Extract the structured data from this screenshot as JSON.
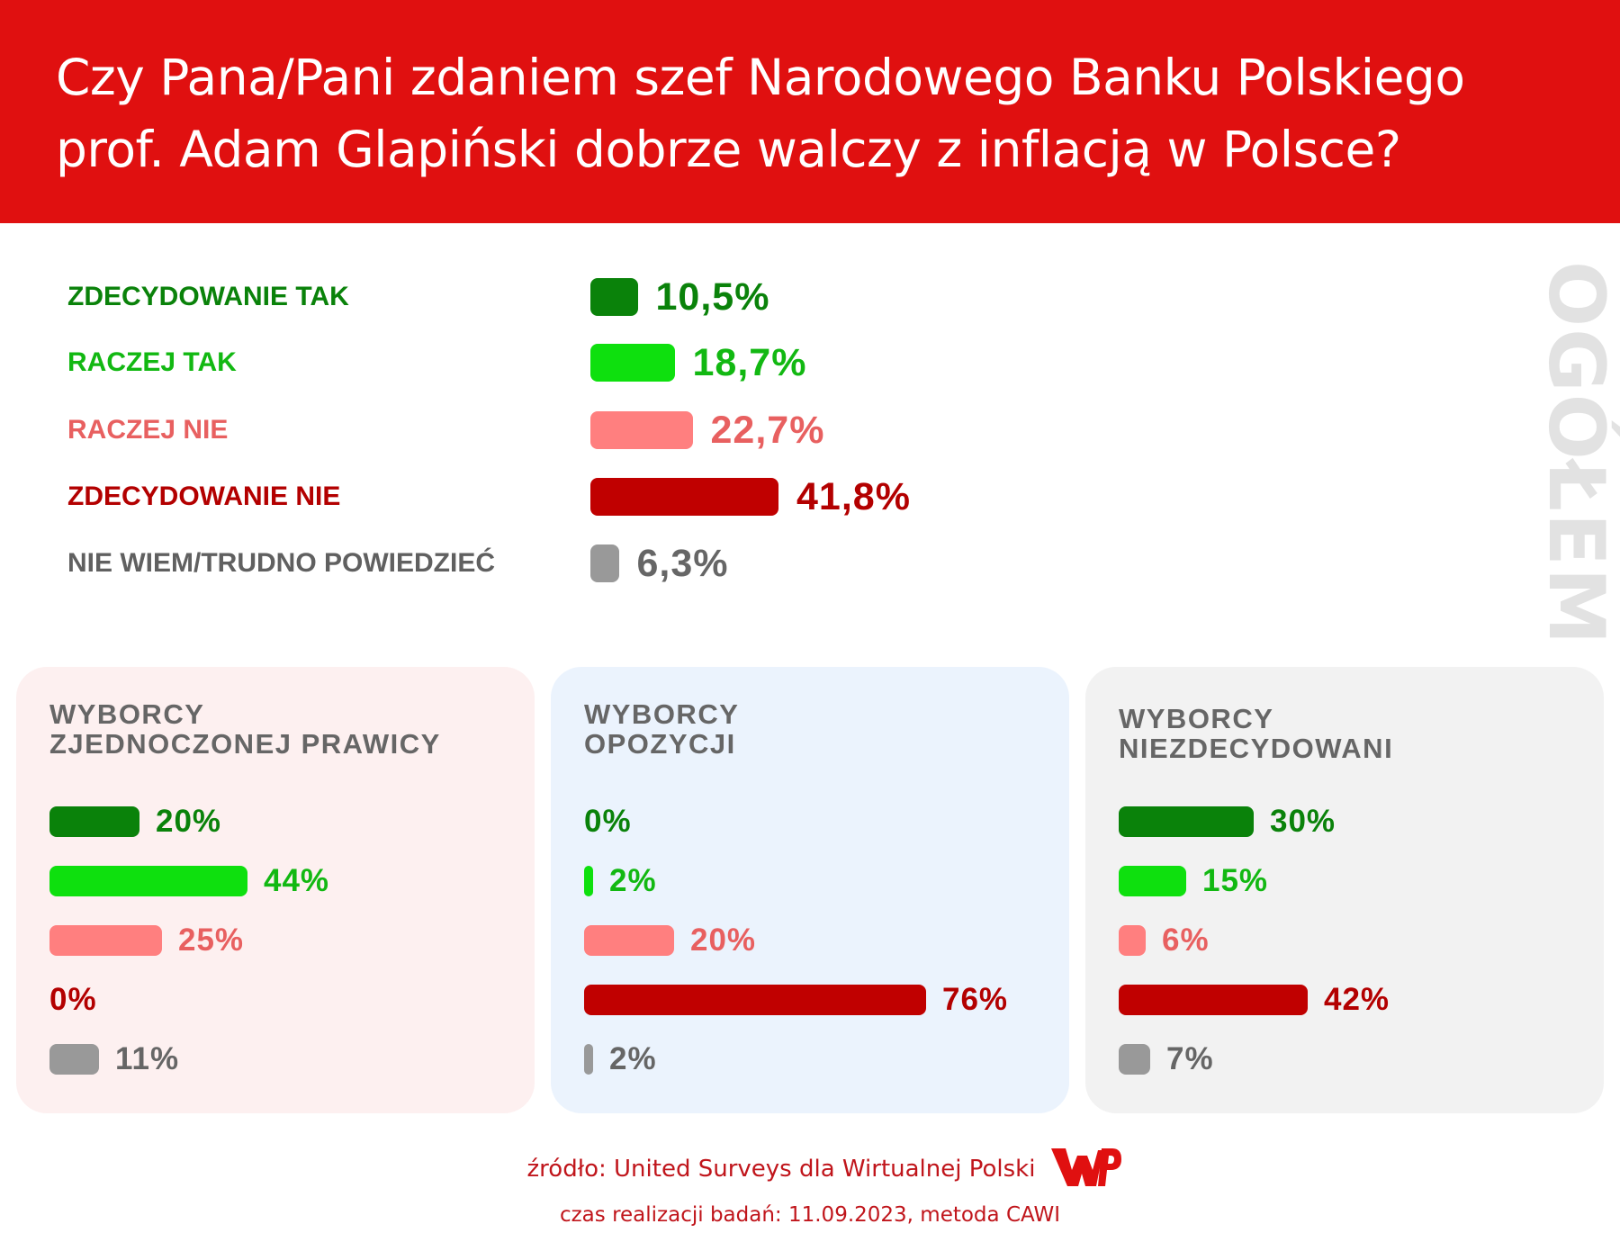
{
  "title_line1": "Czy Pana/Pani zdaniem szef Narodowego Banku Polskiego",
  "title_line2": "prof. Adam Glapiński dobrze walczy z inflacją w Polsce?",
  "side_label": "OGÓŁEM",
  "colors": {
    "header": "#e01010",
    "zdecydowanie_tak": "#0a820a",
    "raczej_tak": "#0ee00e",
    "raczej_nie": "#ff7f7f",
    "zdecydowanie_nie": "#c00000",
    "nie_wiem": "#999999",
    "panel_prawica": "#fdf0f0",
    "panel_opozycja": "#ebf3fd",
    "panel_niezdecydowani": "#f2f2f2"
  },
  "chart_data": [
    {
      "type": "bar",
      "orientation": "horizontal",
      "title": "Czy Pana/Pani zdaniem szef Narodowego Banku Polskiego prof. Adam Glapiński dobrze walczy z inflacją w Polsce?",
      "group": "OGÓŁEM",
      "categories": [
        "ZDECYDOWANIE TAK",
        "RACZEJ TAK",
        "RACZEJ NIE",
        "ZDECYDOWANIE NIE",
        "NIE WIEM/TRUDNO POWIEDZIEĆ"
      ],
      "values": [
        10.5,
        18.7,
        22.7,
        41.8,
        6.3
      ],
      "labels": [
        "10,5%",
        "18,7%",
        "22,7%",
        "41,8%",
        "6,3%"
      ],
      "unit": "%",
      "grid": false
    },
    {
      "type": "bar",
      "orientation": "horizontal",
      "title": "WYBORCY ZJEDNOCZONEJ PRAWICY",
      "categories": [
        "ZDECYDOWANIE TAK",
        "RACZEJ TAK",
        "RACZEJ NIE",
        "ZDECYDOWANIE NIE",
        "NIE WIEM/TRUDNO POWIEDZIEĆ"
      ],
      "values": [
        20,
        44,
        25,
        0,
        11
      ],
      "labels": [
        "20%",
        "44%",
        "25%",
        "0%",
        "11%"
      ],
      "unit": "%"
    },
    {
      "type": "bar",
      "orientation": "horizontal",
      "title": "WYBORCY OPOZYCJI",
      "categories": [
        "ZDECYDOWANIE TAK",
        "RACZEJ TAK",
        "RACZEJ NIE",
        "ZDECYDOWANIE NIE",
        "NIE WIEM/TRUDNO POWIEDZIEĆ"
      ],
      "values": [
        0,
        2,
        20,
        76,
        2
      ],
      "labels": [
        "0%",
        "2%",
        "20%",
        "76%",
        "2%"
      ],
      "unit": "%"
    },
    {
      "type": "bar",
      "orientation": "horizontal",
      "title": "WYBORCY NIEZDECYDOWANI",
      "categories": [
        "ZDECYDOWANIE TAK",
        "RACZEJ TAK",
        "RACZEJ NIE",
        "ZDECYDOWANIE NIE",
        "NIE WIEM/TRUDNO POWIEDZIEĆ"
      ],
      "values": [
        30,
        15,
        6,
        42,
        7
      ],
      "labels": [
        "30%",
        "15%",
        "6%",
        "42%",
        "7%"
      ],
      "unit": "%"
    }
  ],
  "panels": [
    {
      "title_line1": "WYBORCY",
      "title_line2": "ZJEDNOCZONEJ PRAWICY"
    },
    {
      "title_line1": "WYBORCY",
      "title_line2": "OPOZYCJI"
    },
    {
      "title_line1": "WYBORCY",
      "title_line2": "NIEZDECYDOWANI"
    }
  ],
  "source": "źródło: United Surveys dla Wirtualnej Polski",
  "source_date": "czas realizacji badań: 11.09.2023, metoda CAWI",
  "logo_icon": "wp-logo-icon"
}
